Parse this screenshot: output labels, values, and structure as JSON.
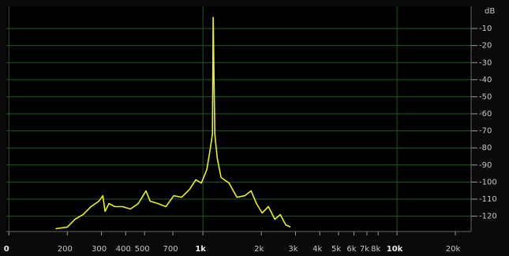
{
  "chart_data": {
    "type": "line",
    "y_label": "dB",
    "log_x": true,
    "grid": true,
    "line_color": "#e8f020",
    "grid_color": "#1d5a1d",
    "background": "#000000",
    "xlim": [
      97,
      24100
    ],
    "ylim": [
      -129,
      3
    ],
    "xticks": [
      {
        "value": 100,
        "label": "0"
      },
      200,
      300,
      400,
      500,
      700,
      {
        "value": 1000,
        "label": "1k"
      },
      {
        "value": 2000,
        "label": "2k"
      },
      {
        "value": 3000,
        "label": "3k"
      },
      {
        "value": 4000,
        "label": "4k"
      },
      {
        "value": 5000,
        "label": "5k"
      },
      {
        "value": 6000,
        "label": "6k"
      },
      {
        "value": 7000,
        "label": "7k"
      },
      {
        "value": 8000,
        "label": "8k"
      },
      {
        "value": 10000,
        "label": "10k"
      },
      {
        "value": 20000,
        "label": "20k"
      }
    ],
    "yticks": [
      -10,
      -20,
      -30,
      -40,
      -50,
      -60,
      -70,
      -80,
      -90,
      -100,
      -110,
      -120
    ],
    "x": [
      174,
      200,
      219,
      241,
      265,
      291,
      305,
      313,
      328,
      351,
      385,
      423,
      464,
      509,
      534,
      586,
      644,
      707,
      777,
      853,
      919,
      981,
      1047,
      1088,
      1119,
      1129,
      1151,
      1184,
      1240,
      1362,
      1496,
      1642,
      1770,
      1888,
      2018,
      2174,
      2345,
      2501,
      2672,
      2825
    ],
    "values": [
      -127.4,
      -126.4,
      -121.8,
      -119.1,
      -114.4,
      -111.2,
      -108.0,
      -117.2,
      -112.6,
      -114.4,
      -114.4,
      -115.8,
      -112.6,
      -105.2,
      -111.2,
      -112.6,
      -114.4,
      -108.0,
      -108.9,
      -104.3,
      -98.7,
      -100.6,
      -92.7,
      -81.2,
      -71.9,
      -3.5,
      -71.9,
      -85.8,
      -97.3,
      -100.6,
      -108.9,
      -108.0,
      -105.2,
      -112.6,
      -118.1,
      -114.4,
      -121.8,
      -119.1,
      -125.1,
      -126.4
    ]
  }
}
